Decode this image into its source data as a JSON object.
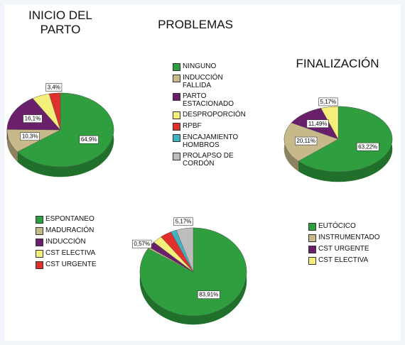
{
  "chart_data": [
    {
      "type": "pie",
      "title": "INICIO DEL PARTO",
      "categories": [
        "ESPONTANEO",
        "MADURACIÓN",
        "INDUCCIÓN",
        "CST ELECTIVA",
        "CST URGENTE"
      ],
      "values": [
        64.9,
        10.3,
        16.1,
        5.3,
        3.4
      ],
      "value_labels": [
        "64,9%",
        "10,3%",
        "16,1%",
        null,
        "3,4%"
      ],
      "colors": [
        "#2e9e3e",
        "#c8b98b",
        "#6a1f6a",
        "#f4ef7a",
        "#e0302b"
      ]
    },
    {
      "type": "pie",
      "title": "PROBLEMAS",
      "categories": [
        "NINGUNO",
        "INDUCCIÓN FALLIDA",
        "PARTO ESTACIONADO",
        "DESPROPORCIÓN",
        "RPBF",
        "ENCAJAMIENTO HOMBROS",
        "PROLAPSO DE CORDÓN"
      ],
      "values": [
        83.91,
        0.57,
        2.3,
        2.87,
        3.45,
        1.73,
        5.17
      ],
      "value_labels": [
        "83,91%",
        "0,57%",
        null,
        null,
        null,
        null,
        "5,17%"
      ],
      "colors": [
        "#2e9e3e",
        "#c8b98b",
        "#6a1f6a",
        "#f4ef7a",
        "#e0302b",
        "#3fb3c0",
        "#bdbdbd"
      ]
    },
    {
      "type": "pie",
      "title": "FINALIZACIÓN",
      "categories": [
        "EUTÓCICO",
        "INSTRUMENTADO",
        "CST URGENTE",
        "CST ELECTIVA"
      ],
      "values": [
        63.22,
        20.11,
        11.49,
        5.17
      ],
      "value_labels": [
        "63,22%",
        "20,11%",
        "11,49%",
        "5,17%"
      ],
      "colors": [
        "#2e9e3e",
        "#c8b98b",
        "#6a1f6a",
        "#f4ef7a"
      ]
    }
  ]
}
